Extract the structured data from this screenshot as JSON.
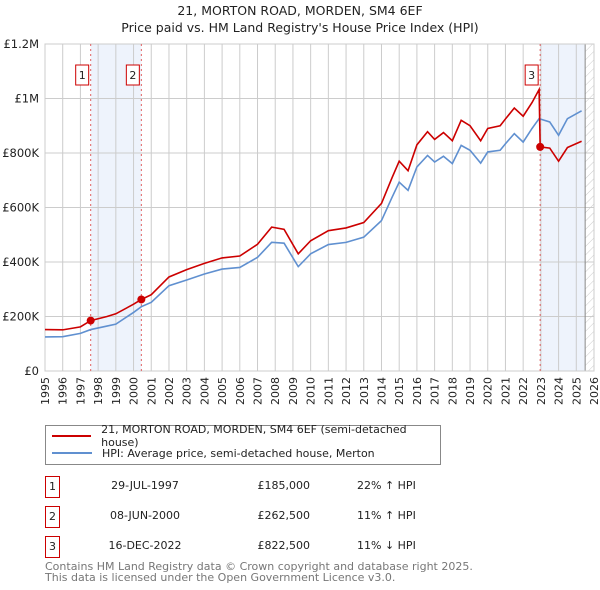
{
  "chart_data": {
    "type": "line",
    "title": "21, MORTON ROAD, MORDEN, SM4 6EF",
    "subtitle": "Price paid vs. HM Land Registry's House Price Index (HPI)",
    "xlim": [
      1995,
      2026
    ],
    "ylim": [
      0,
      1200000
    ],
    "yticks": [
      {
        "v": 0,
        "label": "£0"
      },
      {
        "v": 200000,
        "label": "£200K"
      },
      {
        "v": 400000,
        "label": "£400K"
      },
      {
        "v": 600000,
        "label": "£600K"
      },
      {
        "v": 800000,
        "label": "£800K"
      },
      {
        "v": 1000000,
        "label": "£1M"
      },
      {
        "v": 1200000,
        "label": "£1.2M"
      }
    ],
    "xticks": [
      "1995",
      "1996",
      "1997",
      "1998",
      "1999",
      "2000",
      "2001",
      "2002",
      "2003",
      "2004",
      "2005",
      "2006",
      "2007",
      "2008",
      "2009",
      "2010",
      "2011",
      "2012",
      "2013",
      "2014",
      "2015",
      "2016",
      "2017",
      "2018",
      "2019",
      "2020",
      "2021",
      "2022",
      "2023",
      "2024",
      "2025",
      "2026"
    ],
    "grid": true,
    "legend_position": "below",
    "series": [
      {
        "name": "21, MORTON ROAD, MORDEN, SM4 6EF (semi-detached house)",
        "color": "#cc0000",
        "x": [
          1995,
          1996,
          1997,
          1997.58,
          1998.5,
          1999,
          2000,
          2000.44,
          2001,
          2002,
          2003,
          2004,
          2005,
          2006,
          2007,
          2007.8,
          2008.5,
          2009.3,
          2010,
          2011,
          2012,
          2013,
          2014,
          2014.6,
          2015,
          2015.5,
          2016,
          2016.6,
          2017,
          2017.5,
          2018,
          2018.5,
          2019,
          2019.6,
          2020,
          2020.7,
          2021,
          2021.5,
          2022,
          2022.5,
          2022.9,
          2022.96,
          2023.5,
          2024,
          2024.5,
          2025.3
        ],
        "y": [
          152,
          151,
          162,
          185,
          200,
          210,
          245,
          262.5,
          280,
          345,
          372,
          395,
          415,
          422,
          465,
          528,
          520,
          430,
          478,
          515,
          525,
          545,
          615,
          710,
          770,
          735,
          830,
          878,
          850,
          875,
          845,
          920,
          900,
          845,
          890,
          900,
          925,
          965,
          935,
          985,
          1033,
          822.5,
          818,
          770,
          820,
          843
        ]
      },
      {
        "name": "HPI: Average price, semi-detached house, Merton",
        "color": "#6090d0",
        "x": [
          1995,
          1996,
          1997,
          1997.58,
          1998.5,
          1999,
          2000,
          2000.44,
          2001,
          2002,
          2003,
          2004,
          2005,
          2006,
          2007,
          2007.8,
          2008.5,
          2009.3,
          2010,
          2011,
          2012,
          2013,
          2014,
          2014.6,
          2015,
          2015.5,
          2016,
          2016.6,
          2017,
          2017.5,
          2018,
          2018.5,
          2019,
          2019.6,
          2020,
          2020.7,
          2021,
          2021.5,
          2022,
          2022.5,
          2022.9,
          2023.5,
          2024,
          2024.5,
          2025.3
        ],
        "y": [
          125,
          126,
          138,
          152,
          165,
          172,
          215,
          236,
          252,
          313,
          334,
          356,
          374,
          380,
          417,
          472,
          469,
          383,
          430,
          464,
          472,
          491,
          552,
          638,
          693,
          663,
          749,
          791,
          767,
          788,
          761,
          828,
          810,
          763,
          804,
          810,
          834,
          871,
          840,
          890,
          926,
          914,
          865,
          926,
          955
        ]
      }
    ],
    "sales": [
      {
        "n": "1",
        "year": 1997.58,
        "price": 185000
      },
      {
        "n": "2",
        "year": 2000.44,
        "price": 262500
      },
      {
        "n": "3",
        "year": 2022.96,
        "price": 822500
      }
    ],
    "shaded_ranges": [
      [
        1997.58,
        2000.44
      ],
      [
        2022.96,
        2025.5
      ]
    ],
    "hatched_from": 2025.5
  },
  "legend": {
    "red_label": "21, MORTON ROAD, MORDEN, SM4 6EF (semi-detached house)",
    "blue_label": "HPI: Average price, semi-detached house, Merton"
  },
  "table": [
    {
      "n": "1",
      "date": "29-JUL-1997",
      "price": "£185,000",
      "hpi": "22% ↑ HPI"
    },
    {
      "n": "2",
      "date": "08-JUN-2000",
      "price": "£262,500",
      "hpi": "11% ↑ HPI"
    },
    {
      "n": "3",
      "date": "16-DEC-2022",
      "price": "£822,500",
      "hpi": "11% ↓ HPI"
    }
  ],
  "footer": {
    "line1": "Contains HM Land Registry data © Crown copyright and database right 2025.",
    "line2": "This data is licensed under the Open Government Licence v3.0."
  }
}
